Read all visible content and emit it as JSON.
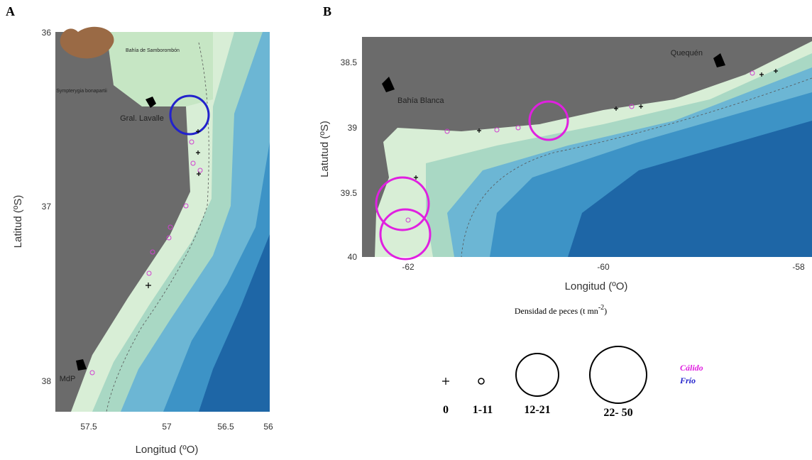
{
  "panel_a": {
    "label": "A",
    "y_axis_title": "Latitud (ºS)",
    "x_axis_title": "Longitud (ºO)",
    "yticks": [
      "36",
      "37",
      "38"
    ],
    "xticks": [
      "57.5",
      "57",
      "56.5",
      "56"
    ],
    "places": {
      "bay": "Bahía de Samborombón",
      "species": "Sympterygia bonapartii",
      "town": "Gral. Lavalle",
      "city": "MdP"
    }
  },
  "panel_b": {
    "label": "B",
    "y_axis_title": "Latutud (ºS)",
    "x_axis_title": "Longitud (ºO)",
    "yticks": [
      "38.5",
      "39",
      "39.5",
      "40"
    ],
    "xticks": [
      "-62",
      "-60",
      "-58"
    ],
    "places": {
      "west": "Bahía Blanca",
      "east": "Quequén"
    }
  },
  "legend": {
    "title": "Densidad de peces (t mn",
    "title_sup": "-2",
    "title_end": ")",
    "classes": [
      "0",
      "1-11",
      "12-21",
      "22- 50"
    ],
    "warm": "Cálido",
    "cold": "Frío"
  }
}
